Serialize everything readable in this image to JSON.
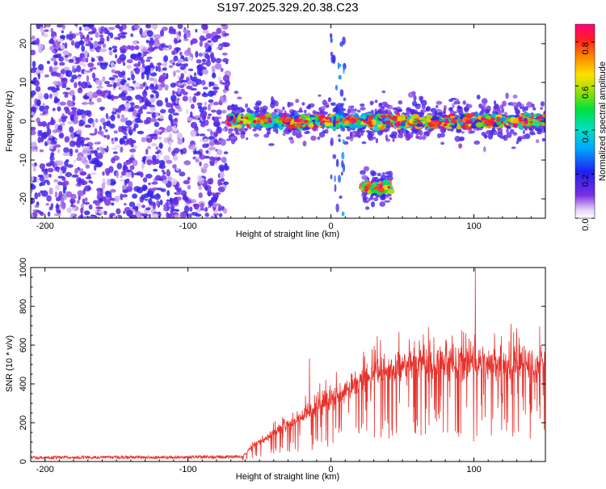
{
  "figure_title": "S197.2025.329.20.38.C23",
  "colors": {
    "snr_line": "#e8302a",
    "axis": "#000000",
    "background": "#ffffff"
  },
  "chart_data": [
    {
      "type": "heatmap",
      "name": "spectrogram",
      "xlabel": "Height of straight line (km)",
      "ylabel": "Frequency (Hz)",
      "xlim": [
        -210,
        150
      ],
      "ylim": [
        -25,
        25
      ],
      "xticks": [
        -200,
        -100,
        0,
        100
      ],
      "yticks": [
        20,
        10,
        0,
        -10,
        -20
      ],
      "x_tick_labels": [
        "-200",
        "-100",
        "0",
        "100"
      ],
      "y_tick_labels": [
        "20",
        "10",
        "0",
        "-10",
        "-20"
      ],
      "regions": [
        {
          "description": "broadband noise",
          "x_range": [
            -210,
            -72
          ],
          "freq_range": [
            -25,
            25
          ],
          "amplitude": 0.12
        },
        {
          "description": "signal track",
          "x_range": [
            -72,
            150
          ],
          "center_freq_hz": 0,
          "amplitude_range": [
            0.3,
            0.9
          ]
        },
        {
          "description": "low-frequency segment",
          "x_range": [
            22,
            42
          ],
          "center_freq_hz": -17,
          "amplitude_range": [
            0.5,
            0.9
          ]
        },
        {
          "description": "vertical streak",
          "x_range": [
            0,
            10
          ],
          "freq_range": [
            -25,
            25
          ],
          "amplitude": 0.2
        }
      ],
      "colorbar": {
        "label": "Normalized spectral amplitude",
        "range": [
          0,
          0.88
        ],
        "ticks": [
          0.0,
          0.2,
          0.4,
          0.6,
          0.8
        ],
        "tick_labels": [
          "0.0",
          "0.2",
          "0.4",
          "0.6",
          "0.8"
        ]
      }
    },
    {
      "type": "line",
      "name": "snr",
      "xlabel": "Height of straight line (km)",
      "ylabel": "SNR (10 * v/v)",
      "xlim": [
        -210,
        150
      ],
      "ylim": [
        0,
        1000
      ],
      "xticks": [
        -200,
        -100,
        0,
        100
      ],
      "yticks": [
        0,
        200,
        400,
        600,
        800,
        1000
      ],
      "x_tick_labels": [
        "-200",
        "-100",
        "0",
        "100"
      ],
      "y_tick_labels": [
        "0",
        "200",
        "400",
        "600",
        "800",
        "1000"
      ],
      "series": [
        {
          "name": "SNR",
          "x": [
            -210,
            -150,
            -100,
            -62,
            -55,
            -45,
            -35,
            -25,
            -15,
            -10,
            -5,
            0,
            10,
            20,
            30,
            40,
            50,
            60,
            70,
            80,
            90,
            100,
            110,
            120,
            130,
            140,
            150
          ],
          "y": [
            20,
            22,
            22,
            25,
            80,
            120,
            170,
            210,
            260,
            280,
            300,
            330,
            370,
            420,
            460,
            480,
            490,
            500,
            500,
            510,
            505,
            510,
            510,
            505,
            510,
            505,
            500
          ]
        }
      ],
      "annotations": [
        {
          "description": "peak",
          "x": 101,
          "y": 1000
        },
        {
          "description": "spike",
          "x": -15,
          "y": 530
        }
      ]
    }
  ]
}
